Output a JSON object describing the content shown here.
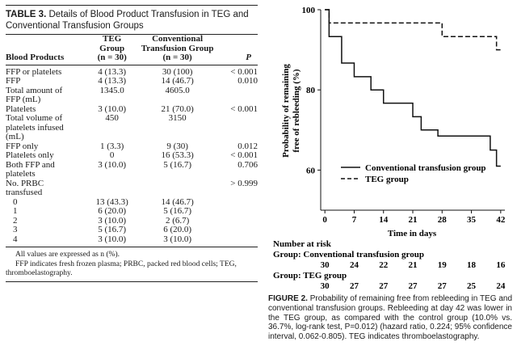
{
  "table": {
    "title_bold": "TABLE 3.",
    "title_rest": "Details of Blood Product Transfusion in TEG and Conventional Transfusion Groups",
    "headers": {
      "col1": "Blood Products",
      "col2_line1": "TEG",
      "col2_line2": "Group",
      "col2_line3": "(n = 30)",
      "col3_line1": "Conventional",
      "col3_line2": "Transfusion Group",
      "col3_line3": "(n = 30)",
      "col4": "P"
    },
    "rows": [
      {
        "label": "FFP or platelets",
        "teg": "4 (13.3)",
        "conv": "30 (100)",
        "p": "< 0.001"
      },
      {
        "label": "FFP",
        "teg": "4 (13.3)",
        "conv": "14 (46.7)",
        "p": "0.010"
      },
      {
        "label": "Total amount of",
        "label2": "FFP (mL)",
        "teg": "1345.0",
        "conv": "4605.0",
        "p": ""
      },
      {
        "label": "Platelets",
        "teg": "3 (10.0)",
        "conv": "21 (70.0)",
        "p": "< 0.001"
      },
      {
        "label": "Total volume of",
        "label2": "platelets infused",
        "label3": "(mL)",
        "teg": "450",
        "conv": "3150",
        "p": ""
      },
      {
        "label": "FFP only",
        "teg": "1 (3.3)",
        "conv": "9 (30)",
        "p": "0.012"
      },
      {
        "label": "Platelets only",
        "teg": "0",
        "conv": "16 (53.3)",
        "p": "< 0.001"
      },
      {
        "label": "Both FFP and",
        "label2": "platelets",
        "teg": "3 (10.0)",
        "conv": "5 (16.7)",
        "p": "0.706"
      },
      {
        "label": "No. PRBC",
        "label2": "transfused",
        "teg": "",
        "conv": "",
        "p": "> 0.999"
      },
      {
        "label": "0",
        "teg": "13 (43.3)",
        "conv": "14 (46.7)",
        "p": ""
      },
      {
        "label": "1",
        "teg": "6 (20.0)",
        "conv": "5 (16.7)",
        "p": ""
      },
      {
        "label": "2",
        "teg": "3 (10.0)",
        "conv": "2 (6.7)",
        "p": ""
      },
      {
        "label": "3",
        "teg": "5 (16.7)",
        "conv": "6 (20.0)",
        "p": ""
      },
      {
        "label": "4",
        "teg": "3 (10.0)",
        "conv": "3 (10.0)",
        "p": ""
      }
    ],
    "note1": "All values are expressed as n (%).",
    "note2": "FFP indicates fresh frozen plasma; PRBC, packed red blood cells; TEG, thromboelastography."
  },
  "figure": {
    "ylabel_line1": "Probability of remaining",
    "ylabel_line2": "free of rebleeding (%)",
    "xlabel": "Time in days",
    "legend_conventional": "Conventional transfusion group",
    "legend_teg": "TEG group",
    "risk_title": "Number at risk",
    "risk_group1_label": "Group: Conventional transfusion group",
    "risk_group1_values": [
      "30",
      "24",
      "22",
      "21",
      "19",
      "18",
      "16"
    ],
    "risk_group2_label": "Group: TEG group",
    "risk_group2_values": [
      "30",
      "27",
      "27",
      "27",
      "27",
      "25",
      "24"
    ],
    "caption_bold": "FIGURE 2.",
    "caption_rest": "Probability of remaining free from rebleeding in TEG and conventional transfusion groups. Rebleeding at day 42 was lower in the TEG group, as compared with the control group (10.0% vs. 36.7%, log-rank test, P=0.012) (hazard ratio, 0.224; 95% confidence interval, 0.062-0.805). TEG indicates thromboelastography."
  },
  "chart_data": {
    "type": "line",
    "title": "",
    "xlabel": "Time in days",
    "ylabel": "Probability of remaining free of rebleeding (%)",
    "xlim": [
      -1,
      43
    ],
    "ylim": [
      50,
      100
    ],
    "xticks": [
      0,
      7,
      14,
      21,
      28,
      35,
      42
    ],
    "yticks": [
      60,
      80,
      100
    ],
    "legend_position": "lower-left",
    "step": true,
    "series": [
      {
        "name": "Conventional transfusion group",
        "style": "solid",
        "points": [
          [
            0,
            100
          ],
          [
            1,
            93.3
          ],
          [
            4,
            86.7
          ],
          [
            7,
            83.3
          ],
          [
            11,
            80
          ],
          [
            14,
            76.7
          ],
          [
            21,
            73.3
          ],
          [
            23,
            70
          ],
          [
            25,
            70
          ],
          [
            27,
            68.5
          ],
          [
            38,
            68.5
          ],
          [
            39.5,
            65
          ],
          [
            41,
            61
          ],
          [
            42,
            61
          ]
        ]
      },
      {
        "name": "TEG group",
        "style": "dashed",
        "points": [
          [
            0,
            100
          ],
          [
            1,
            96.7
          ],
          [
            27,
            96.7
          ],
          [
            28,
            93.3
          ],
          [
            40,
            93.3
          ],
          [
            41,
            90
          ],
          [
            42,
            90
          ]
        ]
      }
    ]
  }
}
